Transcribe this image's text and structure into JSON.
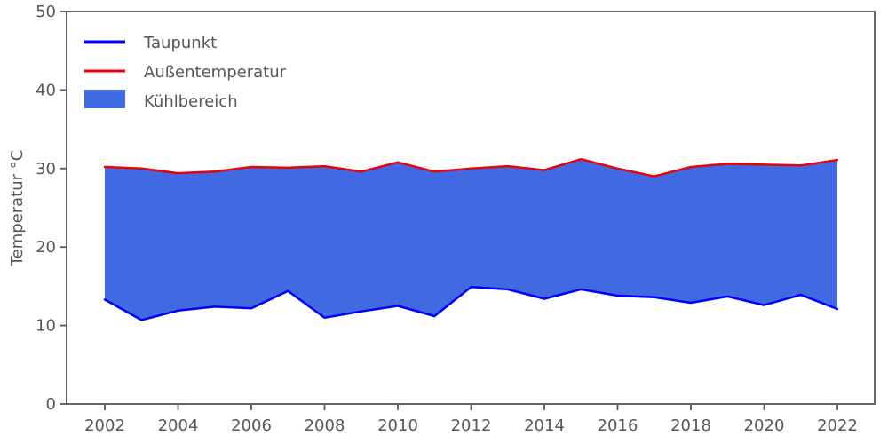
{
  "chart_data": {
    "type": "area",
    "title": "",
    "xlabel": "",
    "ylabel": "Temperatur °C",
    "ylim": [
      0,
      50
    ],
    "xlim": [
      2002,
      2022
    ],
    "grid": false,
    "legend_position": "upper left",
    "x": [
      2002,
      2003,
      2004,
      2005,
      2006,
      2007,
      2008,
      2009,
      2010,
      2011,
      2012,
      2013,
      2014,
      2015,
      2016,
      2017,
      2018,
      2019,
      2020,
      2021,
      2022
    ],
    "xticks": [
      2002,
      2004,
      2006,
      2008,
      2010,
      2012,
      2014,
      2016,
      2018,
      2020,
      2022
    ],
    "yticks": [
      0,
      10,
      20,
      30,
      40,
      50
    ],
    "series": [
      {
        "name": "Taupunkt",
        "color": "#0000ff",
        "values": [
          13.3,
          10.7,
          11.9,
          12.4,
          12.2,
          14.4,
          11.0,
          11.8,
          12.5,
          11.2,
          14.9,
          14.6,
          13.4,
          14.6,
          13.8,
          13.6,
          12.9,
          13.7,
          12.6,
          13.9,
          12.1
        ]
      },
      {
        "name": "Außentemperatur",
        "color": "#e8000b",
        "values": [
          30.2,
          30.0,
          29.4,
          29.6,
          30.2,
          30.1,
          30.3,
          29.6,
          30.8,
          29.6,
          30.0,
          30.3,
          29.8,
          31.2,
          30.0,
          29.0,
          30.2,
          30.6,
          30.5,
          30.4,
          31.1
        ]
      }
    ],
    "fill": {
      "name": "Kühlbereich",
      "color": "#4169e1",
      "between": [
        "Taupunkt",
        "Außentemperatur"
      ]
    }
  }
}
